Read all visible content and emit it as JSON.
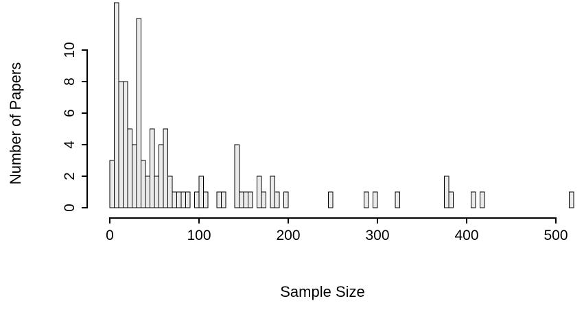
{
  "chart_data": {
    "type": "bar",
    "subtype": "histogram",
    "title": "",
    "xlabel": "Sample Size",
    "ylabel": "Number of Papers",
    "bin_width": 5,
    "xlim": [
      0,
      520
    ],
    "ylim": [
      0,
      13
    ],
    "x_ticks": [
      0,
      100,
      200,
      300,
      400,
      500
    ],
    "y_ticks": [
      0,
      2,
      4,
      6,
      8,
      10
    ],
    "grid": false,
    "legend": "none",
    "bar_fill": "#ebebeb",
    "bar_stroke": "#000000",
    "axis_color": "#000000",
    "bins": [
      {
        "start": 0,
        "count": 3
      },
      {
        "start": 5,
        "count": 13
      },
      {
        "start": 10,
        "count": 8
      },
      {
        "start": 15,
        "count": 8
      },
      {
        "start": 20,
        "count": 5
      },
      {
        "start": 25,
        "count": 4
      },
      {
        "start": 30,
        "count": 12
      },
      {
        "start": 35,
        "count": 3
      },
      {
        "start": 40,
        "count": 2
      },
      {
        "start": 45,
        "count": 5
      },
      {
        "start": 50,
        "count": 2
      },
      {
        "start": 55,
        "count": 4
      },
      {
        "start": 60,
        "count": 5
      },
      {
        "start": 65,
        "count": 2
      },
      {
        "start": 70,
        "count": 1
      },
      {
        "start": 75,
        "count": 1
      },
      {
        "start": 80,
        "count": 1
      },
      {
        "start": 85,
        "count": 1
      },
      {
        "start": 95,
        "count": 1
      },
      {
        "start": 100,
        "count": 2
      },
      {
        "start": 105,
        "count": 1
      },
      {
        "start": 120,
        "count": 1
      },
      {
        "start": 125,
        "count": 1
      },
      {
        "start": 140,
        "count": 4
      },
      {
        "start": 145,
        "count": 1
      },
      {
        "start": 150,
        "count": 1
      },
      {
        "start": 155,
        "count": 1
      },
      {
        "start": 165,
        "count": 2
      },
      {
        "start": 170,
        "count": 1
      },
      {
        "start": 180,
        "count": 2
      },
      {
        "start": 185,
        "count": 1
      },
      {
        "start": 195,
        "count": 1
      },
      {
        "start": 245,
        "count": 1
      },
      {
        "start": 285,
        "count": 1
      },
      {
        "start": 295,
        "count": 1
      },
      {
        "start": 320,
        "count": 1
      },
      {
        "start": 375,
        "count": 2
      },
      {
        "start": 380,
        "count": 1
      },
      {
        "start": 405,
        "count": 1
      },
      {
        "start": 415,
        "count": 1
      },
      {
        "start": 515,
        "count": 1
      }
    ]
  }
}
